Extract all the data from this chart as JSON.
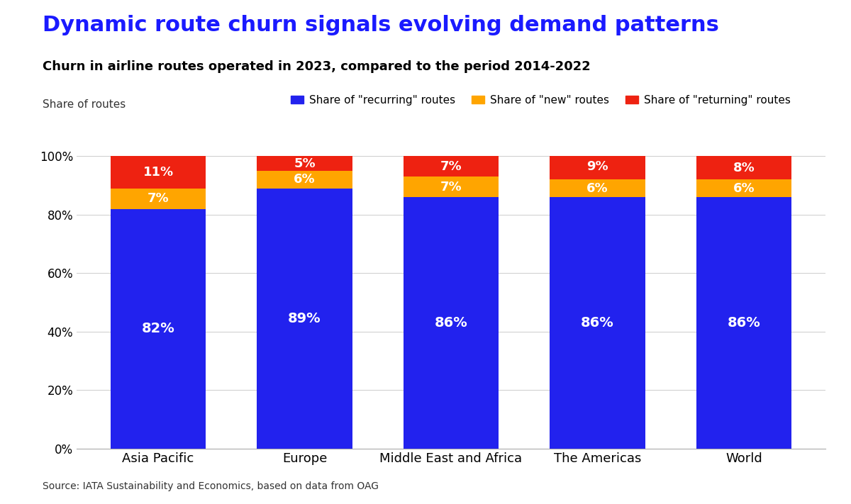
{
  "title": "Dynamic route churn signals evolving demand patterns",
  "subtitle": "Churn in airline routes operated in 2023, compared to the period 2014-2022",
  "ylabel_text": "Share of routes",
  "source": "Source: IATA Sustainability and Economics, based on data from OAG",
  "categories": [
    "Asia Pacific",
    "Europe",
    "Middle East and Africa",
    "The Americas",
    "World"
  ],
  "recurring": [
    82,
    89,
    86,
    86,
    86
  ],
  "new": [
    7,
    6,
    7,
    6,
    6
  ],
  "returning": [
    11,
    5,
    7,
    9,
    8
  ],
  "colors": {
    "recurring": "#2222EE",
    "new": "#FFA500",
    "returning": "#EE2211"
  },
  "legend_labels": [
    "Share of \"recurring\" routes",
    "Share of \"new\" routes",
    "Share of \"returning\" routes"
  ],
  "background_color": "#FFFFFF",
  "title_color": "#1a1aff",
  "subtitle_color": "#000000",
  "bar_width": 0.65,
  "ylim": [
    0,
    100
  ],
  "yticks": [
    0,
    20,
    40,
    60,
    80,
    100
  ],
  "ytick_labels": [
    "0%",
    "20%",
    "40%",
    "60%",
    "80%",
    "100%"
  ]
}
